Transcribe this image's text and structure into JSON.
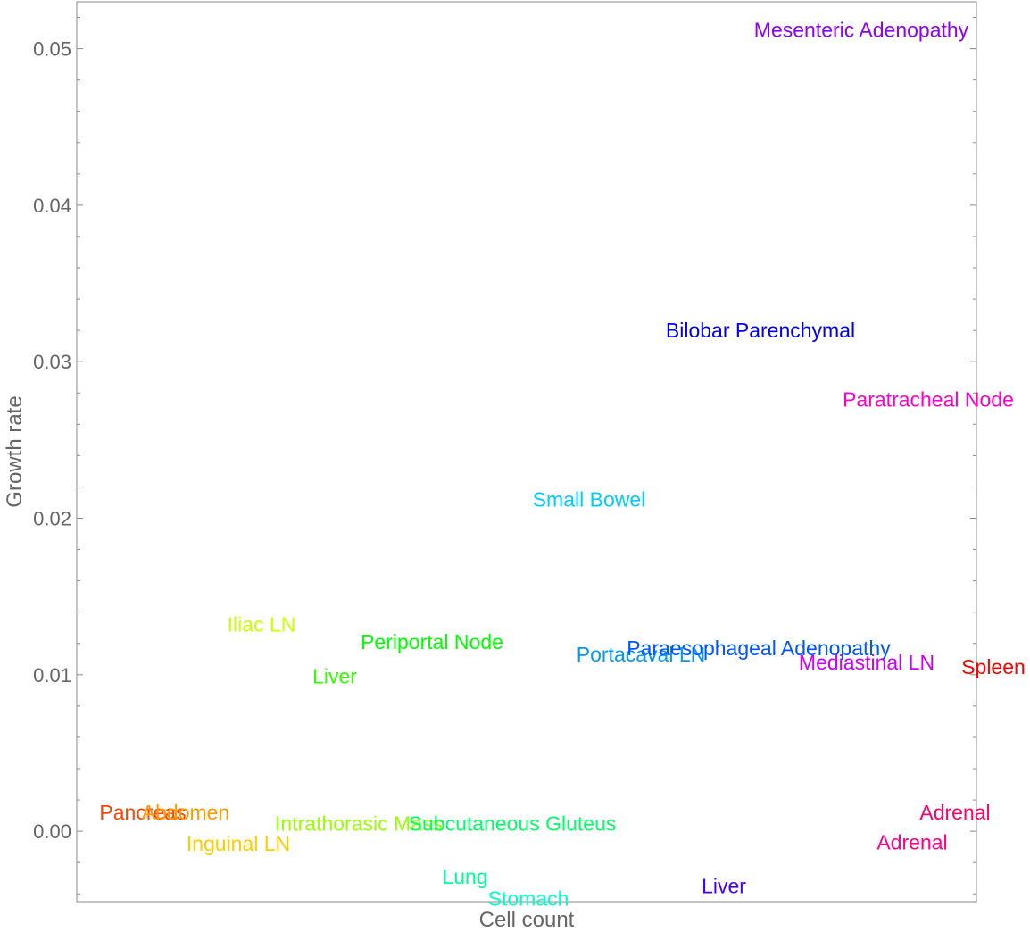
{
  "chart_data": {
    "type": "scatter",
    "title": "",
    "xlabel": "Cell count",
    "ylabel": "Growth rate",
    "xlim": [
      0,
      1
    ],
    "ylim": [
      -0.0045,
      0.053
    ],
    "y_ticks": [
      0.0,
      0.01,
      0.02,
      0.03,
      0.04,
      0.05
    ],
    "y_tick_labels": [
      "0.00",
      "0.01",
      "0.02",
      "0.03",
      "0.04",
      "0.05"
    ],
    "y_minor_step": 0.002,
    "x_ticks_labeled": false,
    "grid": false,
    "points": [
      {
        "label": "Mesenteric Adenopathy",
        "y": 0.0512,
        "color": "#8b00ff"
      },
      {
        "label": "Bilobar Parenchymal",
        "y": 0.032,
        "color": "#0000ee"
      },
      {
        "label": "Paratracheal Node",
        "y": 0.0276,
        "color": "#ff00cc"
      },
      {
        "label": "Small Bowel",
        "y": 0.0212,
        "color": "#00ccff"
      },
      {
        "label": "Iliac LN",
        "y": 0.0132,
        "color": "#ccff00"
      },
      {
        "label": "Periportal Node",
        "y": 0.0121,
        "color": "#00ff00"
      },
      {
        "label": "Liver",
        "y": 0.0099,
        "color": "#33ff00"
      },
      {
        "label": "Portacaval LN",
        "y": 0.0113,
        "color": "#0099ff"
      },
      {
        "label": "Paraesophageal Adenopathy",
        "y": 0.0117,
        "color": "#0055ff"
      },
      {
        "label": "Mediastinal LN",
        "y": 0.0108,
        "color": "#cc00ff"
      },
      {
        "label": "Spleen",
        "y": 0.0105,
        "color": "#ff0000"
      },
      {
        "label": "Pancreas",
        "y": 0.0012,
        "color": "#ff4400"
      },
      {
        "label": "Abdomen",
        "y": 0.0012,
        "color": "#ff9900"
      },
      {
        "label": "Inguinal LN",
        "y": -0.0008,
        "color": "#ffcc00"
      },
      {
        "label": "Intrathorasic Mass",
        "y": 0.0005,
        "color": "#99ff00"
      },
      {
        "label": "Subcutaneous Gluteus",
        "y": 0.0005,
        "color": "#00ff66"
      },
      {
        "label": "Adrenal",
        "y": 0.0012,
        "color": "#ff0066"
      },
      {
        "label": "Adrenal",
        "y": -0.0007,
        "color": "#ff0088"
      },
      {
        "label": "Lung",
        "y": -0.0029,
        "color": "#00ff99"
      },
      {
        "label": "Stomach",
        "y": -0.0043,
        "color": "#00ffcc"
      },
      {
        "label": "Liver",
        "y": -0.0035,
        "color": "#4400ff"
      }
    ]
  }
}
